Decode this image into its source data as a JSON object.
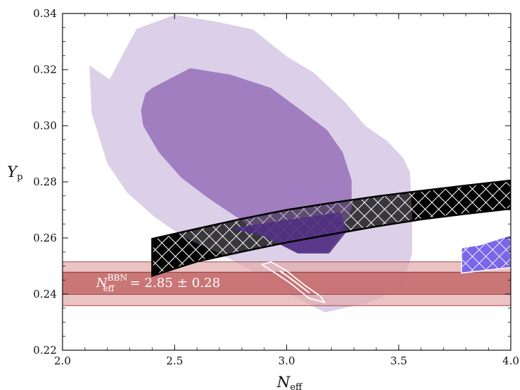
{
  "chart_data": {
    "type": "contour",
    "xlim": [
      2.0,
      4.0
    ],
    "ylim": [
      0.22,
      0.34
    ],
    "x_ticks": [
      "2.0",
      "2.5",
      "3.0",
      "3.5",
      "4.0"
    ],
    "y_ticks": [
      "0.22",
      "0.24",
      "0.26",
      "0.28",
      "0.30",
      "0.32",
      "0.34"
    ],
    "x_tick_values": [
      2.0,
      2.5,
      3.0,
      3.5,
      4.0
    ],
    "y_tick_values": [
      0.22,
      0.24,
      0.26,
      0.28,
      0.3,
      0.32,
      0.34
    ],
    "xlabel": {
      "main": "N",
      "sub": "eff"
    },
    "ylabel": {
      "main": "Y",
      "sub": "p"
    },
    "annotation": {
      "main": "N",
      "sub": "eff",
      "sup": "BBN",
      "rest": "= 2.85 ± 0.28",
      "anchor": [
        2.15,
        0.2425
      ]
    },
    "grid": false,
    "regions": [
      {
        "role": "purple-outer-2sigma",
        "color": "#dcd0e8",
        "points": [
          [
            2.21,
            0.3165
          ],
          [
            2.33,
            0.3345
          ],
          [
            2.5,
            0.3395
          ],
          [
            2.68,
            0.3372
          ],
          [
            2.85,
            0.3343
          ],
          [
            3.0,
            0.3247
          ],
          [
            3.12,
            0.319
          ],
          [
            3.26,
            0.3085
          ],
          [
            3.35,
            0.3
          ],
          [
            3.45,
            0.2945
          ],
          [
            3.52,
            0.2885
          ],
          [
            3.55,
            0.2835
          ],
          [
            3.56,
            0.2685
          ],
          [
            3.56,
            0.2545
          ],
          [
            3.51,
            0.242
          ],
          [
            3.36,
            0.2368
          ],
          [
            3.17,
            0.2335
          ],
          [
            3.04,
            0.239
          ],
          [
            2.92,
            0.2425
          ],
          [
            2.84,
            0.2485
          ],
          [
            2.7,
            0.2545
          ],
          [
            2.55,
            0.2598
          ],
          [
            2.41,
            0.2675
          ],
          [
            2.29,
            0.276
          ],
          [
            2.2,
            0.2865
          ],
          [
            2.13,
            0.3045
          ],
          [
            2.12,
            0.3215
          ]
        ]
      },
      {
        "role": "purple-inner-1sigma",
        "color": "#a07ec0",
        "points": [
          [
            2.4,
            0.3135
          ],
          [
            2.57,
            0.3205
          ],
          [
            2.75,
            0.3182
          ],
          [
            2.93,
            0.3135
          ],
          [
            3.07,
            0.3052
          ],
          [
            3.18,
            0.2985
          ],
          [
            3.25,
            0.2905
          ],
          [
            3.29,
            0.2805
          ],
          [
            3.29,
            0.2705
          ],
          [
            3.24,
            0.261
          ],
          [
            3.18,
            0.2545
          ],
          [
            3.05,
            0.2545
          ],
          [
            2.9,
            0.2605
          ],
          [
            2.78,
            0.2673
          ],
          [
            2.65,
            0.2742
          ],
          [
            2.53,
            0.2815
          ],
          [
            2.43,
            0.2905
          ],
          [
            2.36,
            0.3
          ],
          [
            2.35,
            0.3055
          ],
          [
            2.37,
            0.3115
          ]
        ]
      },
      {
        "role": "dark-purple-overlap",
        "color": "#4e2d80",
        "points": [
          [
            2.75,
            0.2635
          ],
          [
            3.24,
            0.2692
          ],
          [
            3.27,
            0.2625
          ],
          [
            3.19,
            0.2545
          ],
          [
            3.05,
            0.2545
          ],
          [
            2.9,
            0.2605
          ]
        ]
      },
      {
        "role": "black-band-hatched",
        "color": "#000000",
        "points": [
          [
            2.4,
            0.2597
          ],
          [
            2.6,
            0.2633
          ],
          [
            2.8,
            0.2668
          ],
          [
            3.0,
            0.27
          ],
          [
            3.2,
            0.2725
          ],
          [
            3.4,
            0.2748
          ],
          [
            3.6,
            0.2768
          ],
          [
            3.8,
            0.2787
          ],
          [
            4.0,
            0.2805
          ],
          [
            4.0,
            0.2704
          ],
          [
            3.8,
            0.2686
          ],
          [
            3.6,
            0.2666
          ],
          [
            3.4,
            0.2641
          ],
          [
            3.2,
            0.2613
          ],
          [
            3.0,
            0.2584
          ],
          [
            2.8,
            0.2551
          ],
          [
            2.6,
            0.2516
          ],
          [
            2.4,
            0.2465
          ]
        ]
      },
      {
        "role": "blue-hatched-patch",
        "color": "#7a66e8",
        "points": [
          [
            3.78,
            0.2565
          ],
          [
            3.86,
            0.2575
          ],
          [
            4.0,
            0.261
          ],
          [
            4.0,
            0.2495
          ],
          [
            3.78,
            0.2475
          ]
        ]
      }
    ],
    "bands": [
      {
        "role": "bbn-2sigma",
        "color": "#e2aaaa",
        "y0": 0.2359,
        "y1": 0.2515
      },
      {
        "role": "bbn-1sigma",
        "color": "#c4686a",
        "y0": 0.2399,
        "y1": 0.2478
      }
    ],
    "contours": [
      {
        "role": "white-outer",
        "color": "#ffffff",
        "points": [
          [
            2.89,
            0.2505
          ],
          [
            2.95,
            0.2475
          ],
          [
            3.02,
            0.2437
          ],
          [
            3.1,
            0.2385
          ],
          [
            3.17,
            0.237
          ],
          [
            3.15,
            0.2393
          ],
          [
            3.08,
            0.2432
          ],
          [
            3.0,
            0.2483
          ],
          [
            2.93,
            0.2515
          ]
        ]
      },
      {
        "role": "white-inner",
        "color": "#ffffff",
        "points": [
          [
            2.98,
            0.2478
          ],
          [
            3.04,
            0.2442
          ],
          [
            3.1,
            0.2405
          ],
          [
            3.08,
            0.2418
          ],
          [
            3.02,
            0.2455
          ],
          [
            2.97,
            0.2482
          ]
        ]
      }
    ]
  }
}
